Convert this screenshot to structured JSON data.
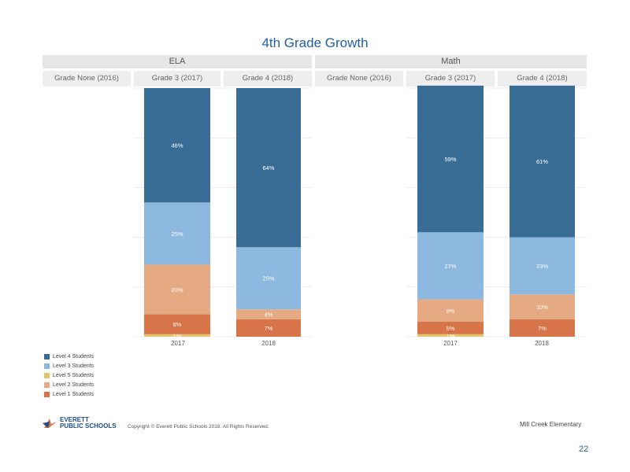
{
  "title": "4th Grade Growth",
  "panels": [
    {
      "name": "ELA",
      "subheaders": [
        "Grade None (2016)",
        "Grade 3 (2017)",
        "Grade 4 (2018)"
      ]
    },
    {
      "name": "Math",
      "subheaders": [
        "Grade None (2016)",
        "Grade 3 (2017)",
        "Grade 4 (2018)"
      ]
    }
  ],
  "legend": [
    {
      "label": "Level 4 Students",
      "color": "#3a6d96"
    },
    {
      "label": "Level 3 Students",
      "color": "#8db8df"
    },
    {
      "label": "Level 5 Students",
      "color": "#e2c46a"
    },
    {
      "label": "Level 2 Students",
      "color": "#e6aa82"
    },
    {
      "label": "Level 1 Students",
      "color": "#d7744a"
    }
  ],
  "chart_data": [
    {
      "type": "bar",
      "stacked": true,
      "panel": "ELA",
      "categories": [
        "2017",
        "2018"
      ],
      "series": [
        {
          "name": "Level 5 Students",
          "values": [
            1,
            0
          ],
          "labels": [
            "1%",
            ""
          ]
        },
        {
          "name": "Level 1 Students",
          "values": [
            8,
            7
          ],
          "labels": [
            "8%",
            "7%"
          ]
        },
        {
          "name": "Level 2 Students",
          "values": [
            20,
            4
          ],
          "labels": [
            "20%",
            "4%"
          ]
        },
        {
          "name": "Level 3 Students",
          "values": [
            25,
            25
          ],
          "labels": [
            "25%",
            "25%"
          ]
        },
        {
          "name": "Level 4 Students",
          "values": [
            46,
            64
          ],
          "labels": [
            "46%",
            "64%"
          ]
        }
      ],
      "ylim": [
        0,
        100
      ]
    },
    {
      "type": "bar",
      "stacked": true,
      "panel": "Math",
      "categories": [
        "2017",
        "2018"
      ],
      "series": [
        {
          "name": "Level 5 Students",
          "values": [
            1,
            0
          ],
          "labels": [
            "1%",
            ""
          ]
        },
        {
          "name": "Level 1 Students",
          "values": [
            5,
            7
          ],
          "labels": [
            "5%",
            "7%"
          ]
        },
        {
          "name": "Level 2 Students",
          "values": [
            9,
            10
          ],
          "labels": [
            "9%",
            "10%"
          ]
        },
        {
          "name": "Level 3 Students",
          "values": [
            27,
            23
          ],
          "labels": [
            "27%",
            "23%"
          ]
        },
        {
          "name": "Level 4 Students",
          "values": [
            59,
            61
          ],
          "labels": [
            "59%",
            "61%"
          ]
        }
      ],
      "ylim": [
        0,
        100
      ]
    }
  ],
  "footer": {
    "logo_line1": "EVERETT",
    "logo_line2": "PUBLIC SCHOOLS",
    "copyright": "Copyright © Everett Public Schools 2018. All Rights Reserved.",
    "school": "Mill Creek Elementary",
    "page": "22"
  }
}
